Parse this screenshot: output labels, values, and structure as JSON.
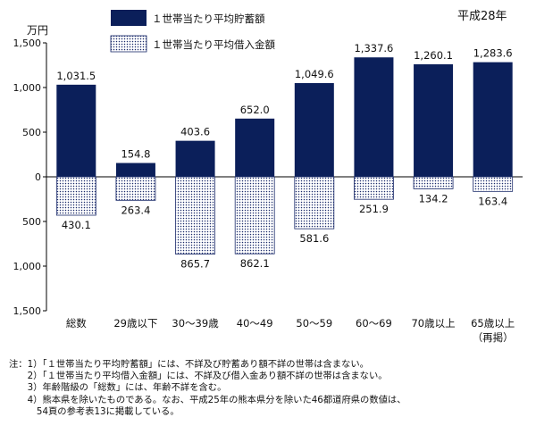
{
  "chart_data": {
    "type": "bar",
    "year_label": "平成28年",
    "unit_label": "万円",
    "categories": [
      "総数",
      "29歳以下",
      "30～39歳",
      "40～49",
      "50～59",
      "60～69",
      "70歳以上",
      "65歳以上"
    ],
    "category_sublabels": [
      "",
      "",
      "",
      "",
      "",
      "",
      "",
      "（再掲）"
    ],
    "series": [
      {
        "name": "１世帯当たり平均貯蓄額",
        "direction": "up",
        "values": [
          1031.5,
          154.8,
          403.6,
          652.0,
          1049.6,
          1337.6,
          1260.1,
          1283.6
        ],
        "labels": [
          "1,031.5",
          "154.8",
          "403.6",
          "652.0",
          "1,049.6",
          "1,337.6",
          "1,260.1",
          "1,283.6"
        ]
      },
      {
        "name": "１世帯当たり平均借入金額",
        "direction": "down",
        "values": [
          430.1,
          263.4,
          865.7,
          862.1,
          581.6,
          251.9,
          134.2,
          163.4
        ],
        "labels": [
          "430.1",
          "263.4",
          "865.7",
          "862.1",
          "581.6",
          "251.9",
          "134.2",
          "163.4"
        ]
      }
    ],
    "ylim": [
      -1500,
      1500
    ],
    "yticks": [
      1500,
      1000,
      500,
      0,
      -500,
      -1000,
      -1500
    ],
    "ytick_labels": [
      "1,500",
      "1,000",
      "500",
      "0",
      "500",
      "1,000",
      "1,500"
    ],
    "colors": {
      "savings": "#0b1f5a",
      "debt_dots": "#1a2a6a",
      "axis": "#000000"
    }
  },
  "notes": [
    "注：1）「１世帯当たり平均貯蓄額」には、不詳及び貯蓄あり額不詳の世帯は含まない。",
    "　　2）「１世帯当たり平均借入金額」には、不詳及び借入金あり額不詳の世帯は含まない。",
    "　　3）年齢階級の「総数」には、年齢不詳を含む。",
    "　　4）熊本県を除いたものである。なお、平成25年の熊本県分を除いた46都道府県の数値は、",
    "　　　54頁の参考表13に掲載している。"
  ]
}
